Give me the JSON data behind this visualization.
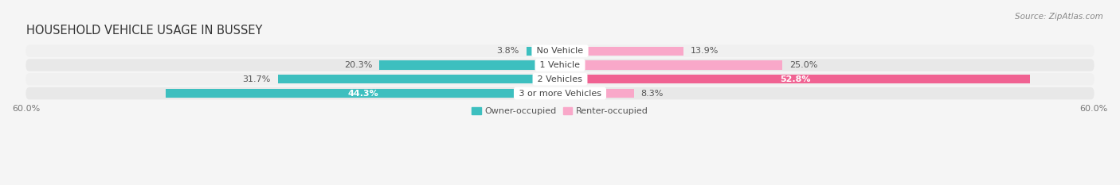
{
  "title": "HOUSEHOLD VEHICLE USAGE IN BUSSEY",
  "source": "Source: ZipAtlas.com",
  "categories": [
    "No Vehicle",
    "1 Vehicle",
    "2 Vehicles",
    "3 or more Vehicles"
  ],
  "owner_values": [
    3.8,
    20.3,
    31.7,
    44.3
  ],
  "renter_values": [
    13.9,
    25.0,
    52.8,
    8.3
  ],
  "owner_color": "#3dbfbf",
  "renter_color_light": "#f9a8c9",
  "renter_color_strong": "#f06292",
  "background_color": "#f5f5f5",
  "row_bg_color": "#e8e8e8",
  "row_bg_light": "#f0f0f0",
  "xlim": 60.0,
  "legend_owner": "Owner-occupied",
  "legend_renter": "Renter-occupied",
  "title_fontsize": 10.5,
  "label_fontsize": 8.0,
  "tick_fontsize": 8.0,
  "bar_height": 0.62,
  "owner_label_colors": [
    "#555555",
    "#555555",
    "#555555",
    "#ffffff"
  ],
  "renter_label_colors": [
    "#555555",
    "#555555",
    "#ffffff",
    "#555555"
  ],
  "renter_colors": [
    "#f9a8c9",
    "#f9a8c9",
    "#f06292",
    "#f9a8c9"
  ]
}
